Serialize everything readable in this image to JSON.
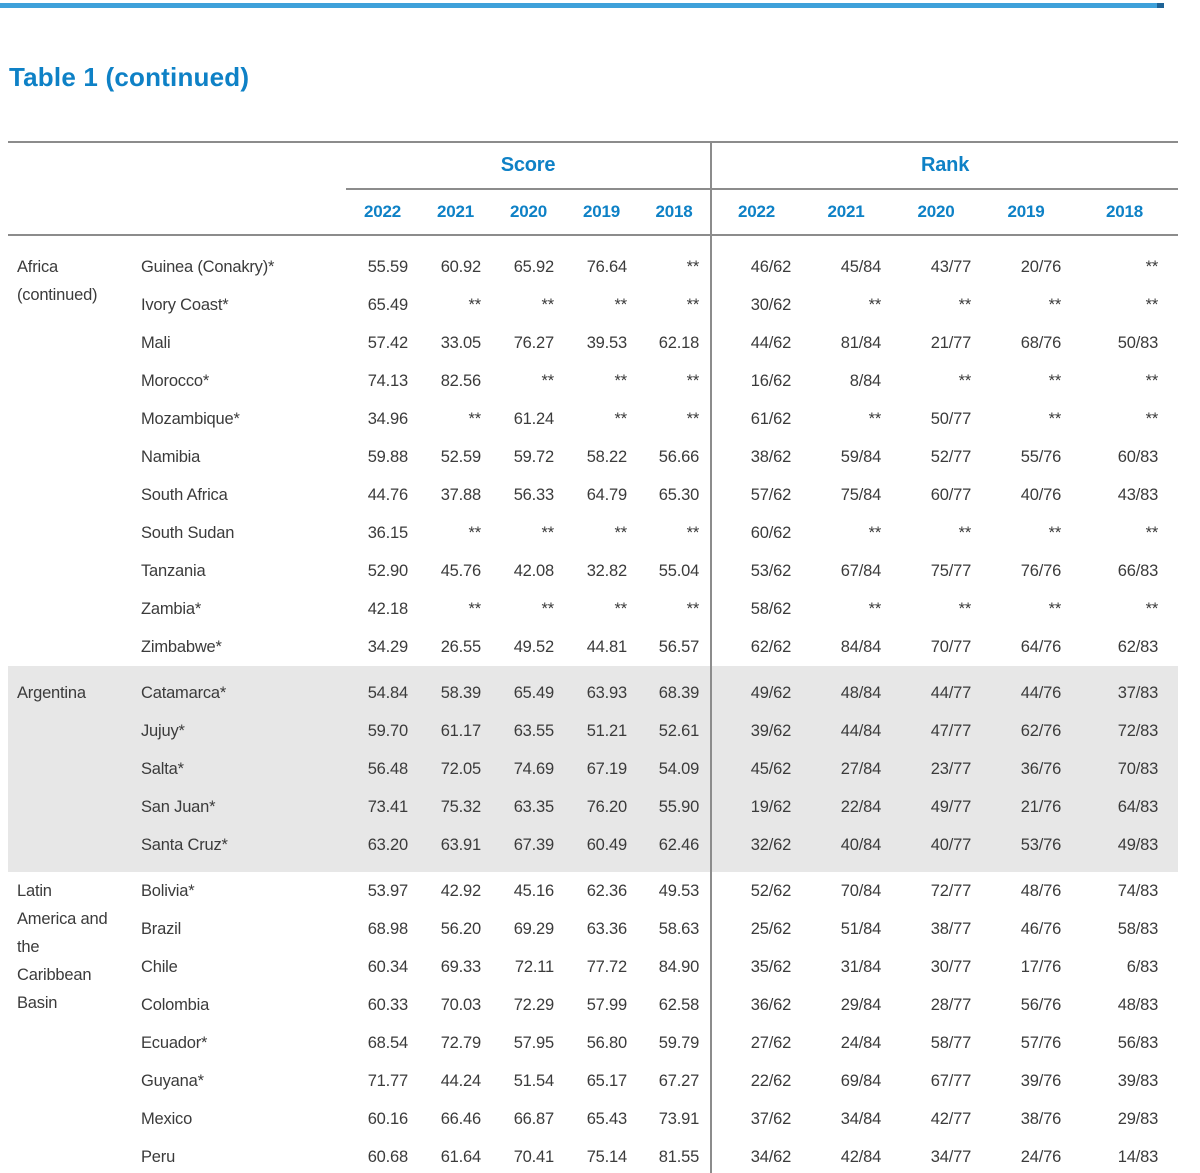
{
  "page": {
    "title": "Table 1 (continued)",
    "top_bar_color": "#3EA1DA",
    "top_bar_cap_color": "#1E6396"
  },
  "colors": {
    "heading_blue": "#0E81C6",
    "body_text": "#3B3B3B",
    "rule_gray": "#8C8C8C",
    "shaded_band": "#E7E7E7"
  },
  "table": {
    "col_groups": {
      "score": "Score",
      "rank": "Rank"
    },
    "years": [
      "2022",
      "2021",
      "2020",
      "2019",
      "2018"
    ],
    "na_marker": "**",
    "sections": [
      {
        "region": "Africa (continued)",
        "shaded": false,
        "rows": [
          {
            "name": "Guinea (Conakry)*",
            "score": [
              "55.59",
              "60.92",
              "65.92",
              "76.64",
              "**"
            ],
            "rank": [
              "46/62",
              "45/84",
              "43/77",
              "20/76",
              "**"
            ]
          },
          {
            "name": "Ivory Coast*",
            "score": [
              "65.49",
              "**",
              "**",
              "**",
              "**"
            ],
            "rank": [
              "30/62",
              "**",
              "**",
              "**",
              "**"
            ]
          },
          {
            "name": "Mali",
            "score": [
              "57.42",
              "33.05",
              "76.27",
              "39.53",
              "62.18"
            ],
            "rank": [
              "44/62",
              "81/84",
              "21/77",
              "68/76",
              "50/83"
            ]
          },
          {
            "name": "Morocco*",
            "score": [
              "74.13",
              "82.56",
              "**",
              "**",
              "**"
            ],
            "rank": [
              "16/62",
              "8/84",
              "**",
              "**",
              "**"
            ]
          },
          {
            "name": "Mozambique*",
            "score": [
              "34.96",
              "**",
              "61.24",
              "**",
              "**"
            ],
            "rank": [
              "61/62",
              "**",
              "50/77",
              "**",
              "**"
            ]
          },
          {
            "name": "Namibia",
            "score": [
              "59.88",
              "52.59",
              "59.72",
              "58.22",
              "56.66"
            ],
            "rank": [
              "38/62",
              "59/84",
              "52/77",
              "55/76",
              "60/83"
            ]
          },
          {
            "name": "South Africa",
            "score": [
              "44.76",
              "37.88",
              "56.33",
              "64.79",
              "65.30"
            ],
            "rank": [
              "57/62",
              "75/84",
              "60/77",
              "40/76",
              "43/83"
            ]
          },
          {
            "name": "South Sudan",
            "score": [
              "36.15",
              "**",
              "**",
              "**",
              "**"
            ],
            "rank": [
              "60/62",
              "**",
              "**",
              "**",
              "**"
            ]
          },
          {
            "name": "Tanzania",
            "score": [
              "52.90",
              "45.76",
              "42.08",
              "32.82",
              "55.04"
            ],
            "rank": [
              "53/62",
              "67/84",
              "75/77",
              "76/76",
              "66/83"
            ]
          },
          {
            "name": "Zambia*",
            "score": [
              "42.18",
              "**",
              "**",
              "**",
              "**"
            ],
            "rank": [
              "58/62",
              "**",
              "**",
              "**",
              "**"
            ]
          },
          {
            "name": "Zimbabwe*",
            "score": [
              "34.29",
              "26.55",
              "49.52",
              "44.81",
              "56.57"
            ],
            "rank": [
              "62/62",
              "84/84",
              "70/77",
              "64/76",
              "62/83"
            ]
          }
        ]
      },
      {
        "region": "Argentina",
        "shaded": true,
        "rows": [
          {
            "name": "Catamarca*",
            "score": [
              "54.84",
              "58.39",
              "65.49",
              "63.93",
              "68.39"
            ],
            "rank": [
              "49/62",
              "48/84",
              "44/77",
              "44/76",
              "37/83"
            ]
          },
          {
            "name": "Jujuy*",
            "score": [
              "59.70",
              "61.17",
              "63.55",
              "51.21",
              "52.61"
            ],
            "rank": [
              "39/62",
              "44/84",
              "47/77",
              "62/76",
              "72/83"
            ]
          },
          {
            "name": "Salta*",
            "score": [
              "56.48",
              "72.05",
              "74.69",
              "67.19",
              "54.09"
            ],
            "rank": [
              "45/62",
              "27/84",
              "23/77",
              "36/76",
              "70/83"
            ]
          },
          {
            "name": "San Juan*",
            "score": [
              "73.41",
              "75.32",
              "63.35",
              "76.20",
              "55.90"
            ],
            "rank": [
              "19/62",
              "22/84",
              "49/77",
              "21/76",
              "64/83"
            ]
          },
          {
            "name": "Santa Cruz*",
            "score": [
              "63.20",
              "63.91",
              "67.39",
              "60.49",
              "62.46"
            ],
            "rank": [
              "32/62",
              "40/84",
              "40/77",
              "53/76",
              "49/83"
            ]
          }
        ]
      },
      {
        "region": "Latin America and the Caribbean Basin",
        "shaded": false,
        "rows": [
          {
            "name": "Bolivia*",
            "score": [
              "53.97",
              "42.92",
              "45.16",
              "62.36",
              "49.53"
            ],
            "rank": [
              "52/62",
              "70/84",
              "72/77",
              "48/76",
              "74/83"
            ]
          },
          {
            "name": "Brazil",
            "score": [
              "68.98",
              "56.20",
              "69.29",
              "63.36",
              "58.63"
            ],
            "rank": [
              "25/62",
              "51/84",
              "38/77",
              "46/76",
              "58/83"
            ]
          },
          {
            "name": "Chile",
            "score": [
              "60.34",
              "69.33",
              "72.11",
              "77.72",
              "84.90"
            ],
            "rank": [
              "35/62",
              "31/84",
              "30/77",
              "17/76",
              "6/83"
            ]
          },
          {
            "name": "Colombia",
            "score": [
              "60.33",
              "70.03",
              "72.29",
              "57.99",
              "62.58"
            ],
            "rank": [
              "36/62",
              "29/84",
              "28/77",
              "56/76",
              "48/83"
            ]
          },
          {
            "name": "Ecuador*",
            "score": [
              "68.54",
              "72.79",
              "57.95",
              "56.80",
              "59.79"
            ],
            "rank": [
              "27/62",
              "24/84",
              "58/77",
              "57/76",
              "56/83"
            ]
          },
          {
            "name": "Guyana*",
            "score": [
              "71.77",
              "44.24",
              "51.54",
              "65.17",
              "67.27"
            ],
            "rank": [
              "22/62",
              "69/84",
              "67/77",
              "39/76",
              "39/83"
            ]
          },
          {
            "name": "Mexico",
            "score": [
              "60.16",
              "66.46",
              "66.87",
              "65.43",
              "73.91"
            ],
            "rank": [
              "37/62",
              "34/84",
              "42/77",
              "38/76",
              "29/83"
            ]
          },
          {
            "name": "Peru",
            "score": [
              "60.68",
              "61.64",
              "70.41",
              "75.14",
              "81.55"
            ],
            "rank": [
              "34/62",
              "42/84",
              "34/77",
              "24/76",
              "14/83"
            ]
          }
        ]
      }
    ]
  }
}
